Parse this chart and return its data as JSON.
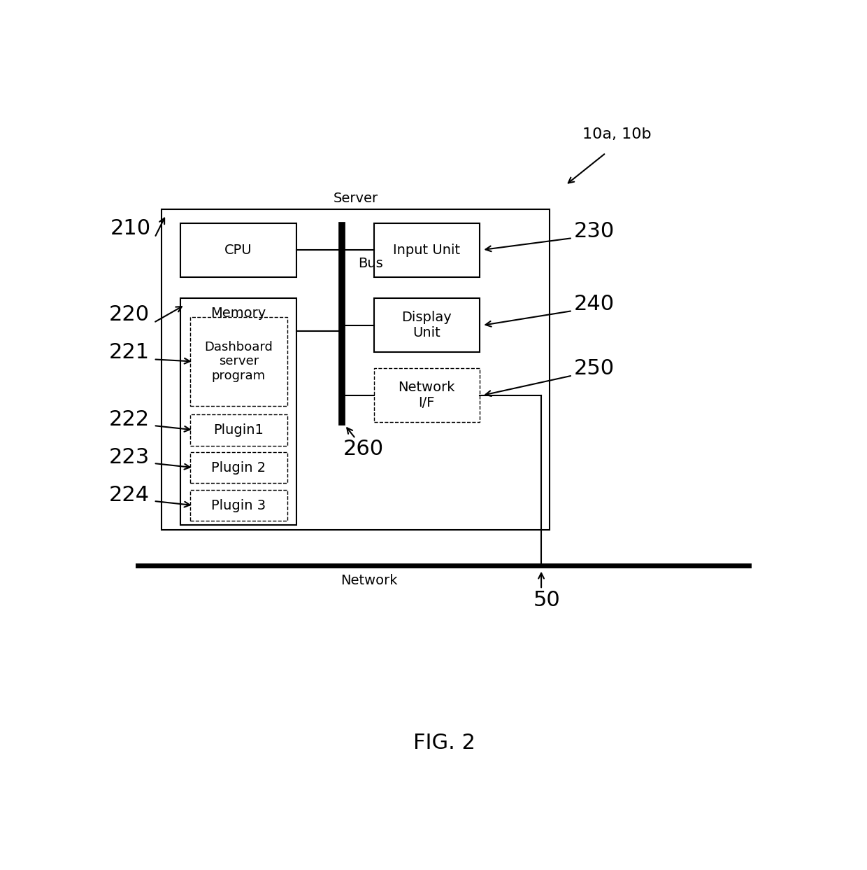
{
  "fig_width": 12.4,
  "fig_height": 12.43,
  "bg_color": "#ffffff",
  "title": "FIG. 2",
  "title_fontsize": 22,
  "label_10ab": "10a, 10b",
  "server_label": "Server",
  "network_label": "Network",
  "bus_label": "Bus",
  "cpu_label": "CPU",
  "memory_label": "Memory",
  "dashboard_label": "Dashboard\nserver\nprogram",
  "plugin1_label": "Plugin1",
  "plugin2_label": "Plugin 2",
  "plugin3_label": "Plugin 3",
  "input_label": "Input Unit",
  "display_label": "Display\nUnit",
  "network_if_label": "Network\nI/F",
  "label_210": "210",
  "label_220": "220",
  "label_221": "221",
  "label_222": "222",
  "label_223": "223",
  "label_224": "224",
  "label_230": "230",
  "label_240": "240",
  "label_250": "250",
  "label_260": "260",
  "label_50": "50",
  "label_fontsize": 14,
  "number_fontsize_large": 22,
  "number_fontsize_small": 16
}
